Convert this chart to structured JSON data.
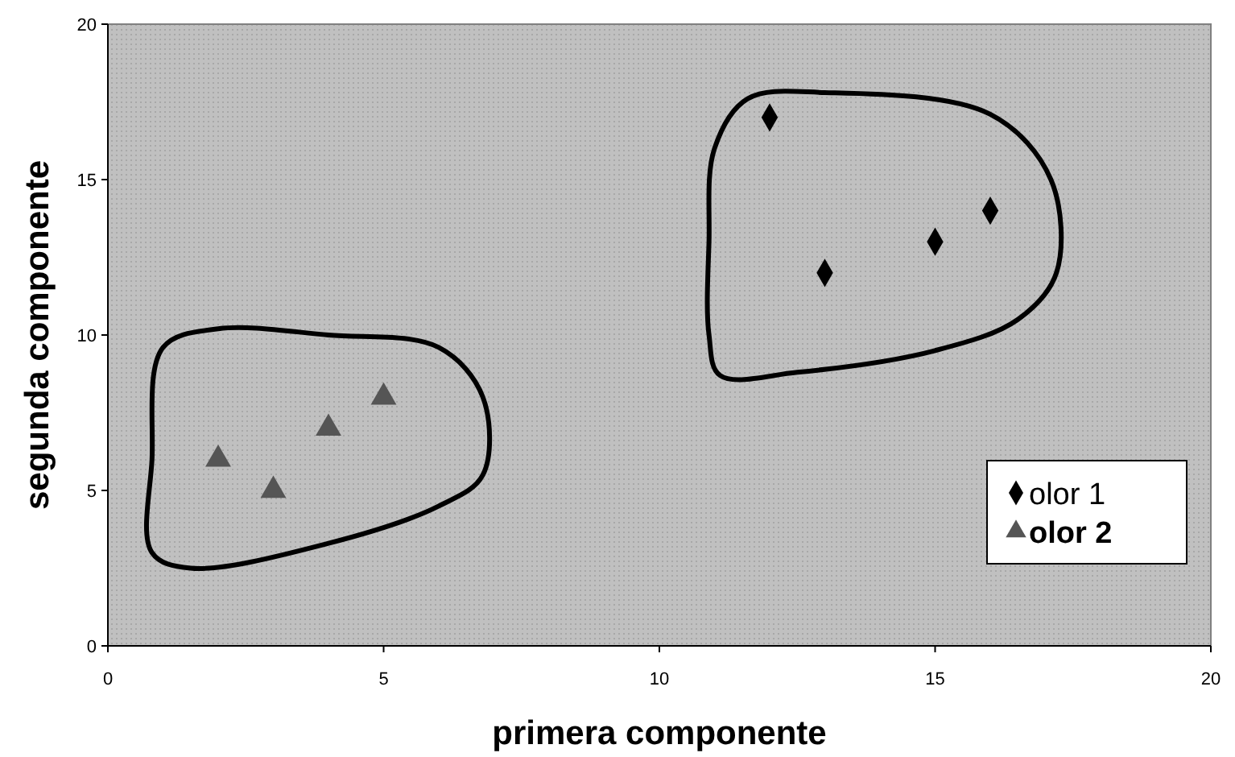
{
  "chart_data": {
    "type": "scatter",
    "xlabel": "primera componente",
    "ylabel": "segunda componente",
    "xlim": [
      0,
      20
    ],
    "xticks": [
      0,
      5,
      10,
      15,
      20
    ],
    "ylim": [
      0,
      20
    ],
    "yticks": [
      0,
      5,
      10,
      15,
      20
    ],
    "legend": "bottom right",
    "grid": false,
    "series": [
      {
        "name": "olor 1",
        "color": "#000000",
        "marker": "diamond",
        "x": [
          12,
          13,
          15,
          16
        ],
        "values": [
          17,
          12,
          13,
          14
        ]
      },
      {
        "name": "olor 2",
        "color": "#555555",
        "marker": "triangle",
        "x": [
          2,
          3,
          4,
          5
        ],
        "values": [
          6,
          5,
          7,
          8
        ]
      }
    ]
  }
}
